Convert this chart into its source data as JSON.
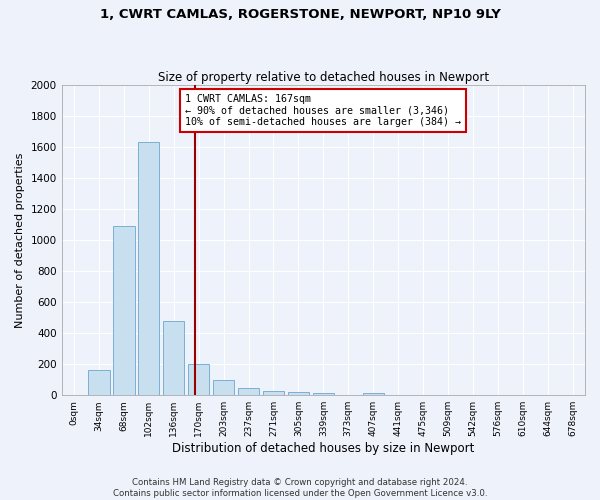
{
  "title": "1, CWRT CAMLAS, ROGERSTONE, NEWPORT, NP10 9LY",
  "subtitle": "Size of property relative to detached houses in Newport",
  "xlabel": "Distribution of detached houses by size in Newport",
  "ylabel": "Number of detached properties",
  "footer_line1": "Contains HM Land Registry data © Crown copyright and database right 2024.",
  "footer_line2": "Contains public sector information licensed under the Open Government Licence v3.0.",
  "bar_labels": [
    "0sqm",
    "34sqm",
    "68sqm",
    "102sqm",
    "136sqm",
    "170sqm",
    "203sqm",
    "237sqm",
    "271sqm",
    "305sqm",
    "339sqm",
    "373sqm",
    "407sqm",
    "441sqm",
    "475sqm",
    "509sqm",
    "542sqm",
    "576sqm",
    "610sqm",
    "644sqm",
    "678sqm"
  ],
  "bar_values": [
    0,
    165,
    1090,
    1630,
    480,
    200,
    100,
    45,
    30,
    20,
    15,
    0,
    15,
    0,
    0,
    0,
    0,
    0,
    0,
    0,
    0
  ],
  "bar_color": "#c8dff0",
  "bar_edge_color": "#7bafd4",
  "property_line_x": 4.85,
  "property_line_label": "1 CWRT CAMLAS: 167sqm",
  "annotation_line1": "← 90% of detached houses are smaller (3,346)",
  "annotation_line2": "10% of semi-detached houses are larger (384) →",
  "annotation_box_color": "#ffffff",
  "annotation_box_edge_color": "#cc0000",
  "vline_color": "#990000",
  "ylim": [
    0,
    2000
  ],
  "yticks": [
    0,
    200,
    400,
    600,
    800,
    1000,
    1200,
    1400,
    1600,
    1800,
    2000
  ],
  "background_color": "#eef2fb",
  "grid_color": "#ffffff"
}
